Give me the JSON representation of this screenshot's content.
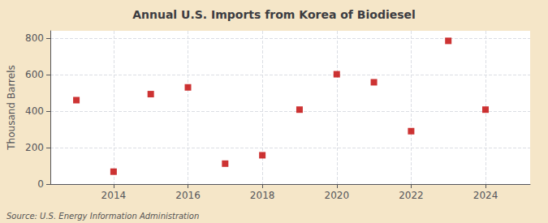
{
  "chart_data": {
    "type": "scatter",
    "title": "Annual U.S. Imports from Korea of Biodiesel",
    "ylabel": "Thousand Barrels",
    "source": "Source: U.S. Energy Information Administration",
    "x": [
      2013,
      2014,
      2015,
      2016,
      2017,
      2018,
      2019,
      2020,
      2021,
      2022,
      2023,
      2024
    ],
    "values": [
      460,
      68,
      493,
      530,
      112,
      158,
      408,
      602,
      558,
      290,
      785,
      408
    ],
    "color": "#c00000",
    "marker": "square",
    "xlim": [
      2012.3,
      2025.2
    ],
    "ylim": [
      0,
      840
    ],
    "xticks": [
      2014,
      2016,
      2018,
      2020,
      2022,
      2024
    ],
    "yticks": [
      0,
      200,
      400,
      600,
      800
    ],
    "grid": true
  }
}
